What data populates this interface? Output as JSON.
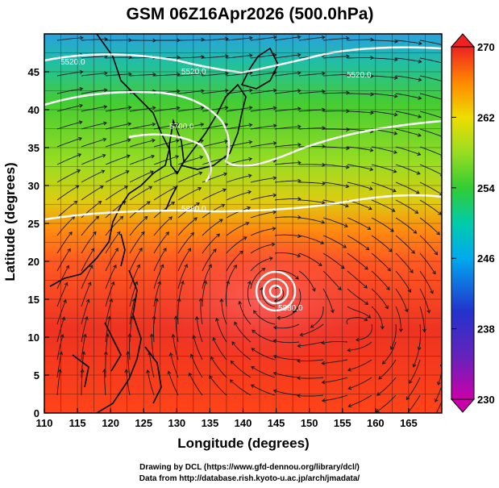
{
  "title": "GSM 06Z16Apr2026 (500.0hPa)",
  "axes": {
    "xlabel": "Longitude (degrees)",
    "ylabel": "Latitude  (degrees)",
    "xlim": [
      110,
      170
    ],
    "ylim": [
      0,
      50
    ],
    "xticks": [
      "110",
      "115",
      "120",
      "125",
      "130",
      "135",
      "140",
      "145",
      "150",
      "155",
      "160",
      "165"
    ],
    "yticks": [
      "0",
      "5",
      "10",
      "15",
      "20",
      "25",
      "30",
      "35",
      "40",
      "45"
    ]
  },
  "colorbar": {
    "min": 230,
    "max": 270,
    "labels": [
      "270",
      "262",
      "254",
      "246",
      "238",
      "230"
    ],
    "stops": [
      "#cc00aa",
      "#3333cc",
      "#00aaee",
      "#00ccaa",
      "#33cc33",
      "#99dd22",
      "#eedd00",
      "#ff9900",
      "#ff5522",
      "#ee2222"
    ]
  },
  "contour_labels": [
    "5520.0",
    "5520.0",
    "5520.0",
    "5700.0",
    "5880.0",
    "5880.0"
  ],
  "footer": {
    "line1": "Drawing by DCL (https://www.gfd-dennou.org/library/dcl/)",
    "line2": "Data from http://database.rish.kyoto-u.ac.jp/arch/jmadata/"
  }
}
